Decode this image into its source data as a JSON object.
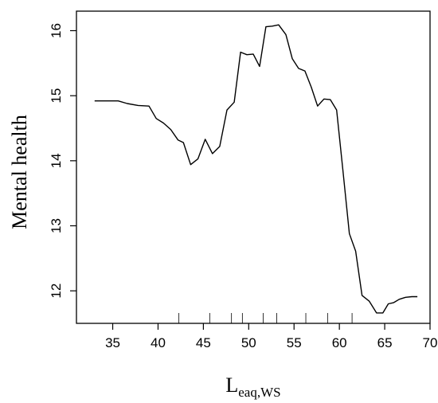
{
  "chart_data": {
    "type": "line",
    "title": "",
    "xlabel": {
      "main": "L",
      "sub": "eaq,WS"
    },
    "ylabel": "Mental health",
    "xlim": [
      31,
      70
    ],
    "ylim": [
      11.5,
      16.3
    ],
    "xticks": [
      35,
      40,
      45,
      50,
      55,
      60,
      65,
      70
    ],
    "yticks": [
      12,
      13,
      14,
      15,
      16
    ],
    "xtick_labels": [
      "35",
      "40",
      "45",
      "50",
      "55",
      "60",
      "65",
      "70"
    ],
    "ytick_labels": [
      "12",
      "13",
      "14",
      "15",
      "16"
    ],
    "grid": false,
    "legend": "none",
    "line_color": "#000000",
    "rug": [
      42.3,
      45.7,
      48.1,
      49.3,
      51.6,
      53.1,
      56.3,
      58.7,
      61.4
    ],
    "series": [
      {
        "x": [
          33.0,
          35.6,
          36.6,
          37.8,
          39.0,
          39.8,
          40.6,
          41.4,
          42.2,
          42.8,
          43.6,
          44.4,
          45.2,
          46.0,
          46.8,
          47.6,
          48.4,
          49.1,
          49.8,
          50.5,
          51.2,
          51.9,
          52.6,
          53.3,
          54.1,
          54.8,
          55.5,
          56.2,
          56.9,
          57.6,
          58.3,
          59.0,
          59.7,
          60.4,
          61.1,
          61.8,
          62.5,
          63.3,
          64.1,
          64.8,
          65.4,
          66.0,
          66.6,
          67.3,
          68.0,
          68.6
        ],
        "y": [
          14.92,
          14.92,
          14.88,
          14.85,
          14.84,
          14.65,
          14.58,
          14.48,
          14.32,
          14.28,
          13.94,
          14.03,
          14.33,
          14.11,
          14.22,
          14.78,
          14.9,
          15.67,
          15.63,
          15.64,
          15.45,
          16.06,
          16.07,
          16.09,
          15.94,
          15.57,
          15.42,
          15.38,
          15.13,
          14.84,
          14.95,
          14.94,
          14.78,
          13.84,
          12.88,
          12.61,
          11.93,
          11.84,
          11.66,
          11.66,
          11.8,
          11.82,
          11.87,
          11.9,
          11.91,
          11.91
        ]
      }
    ]
  }
}
